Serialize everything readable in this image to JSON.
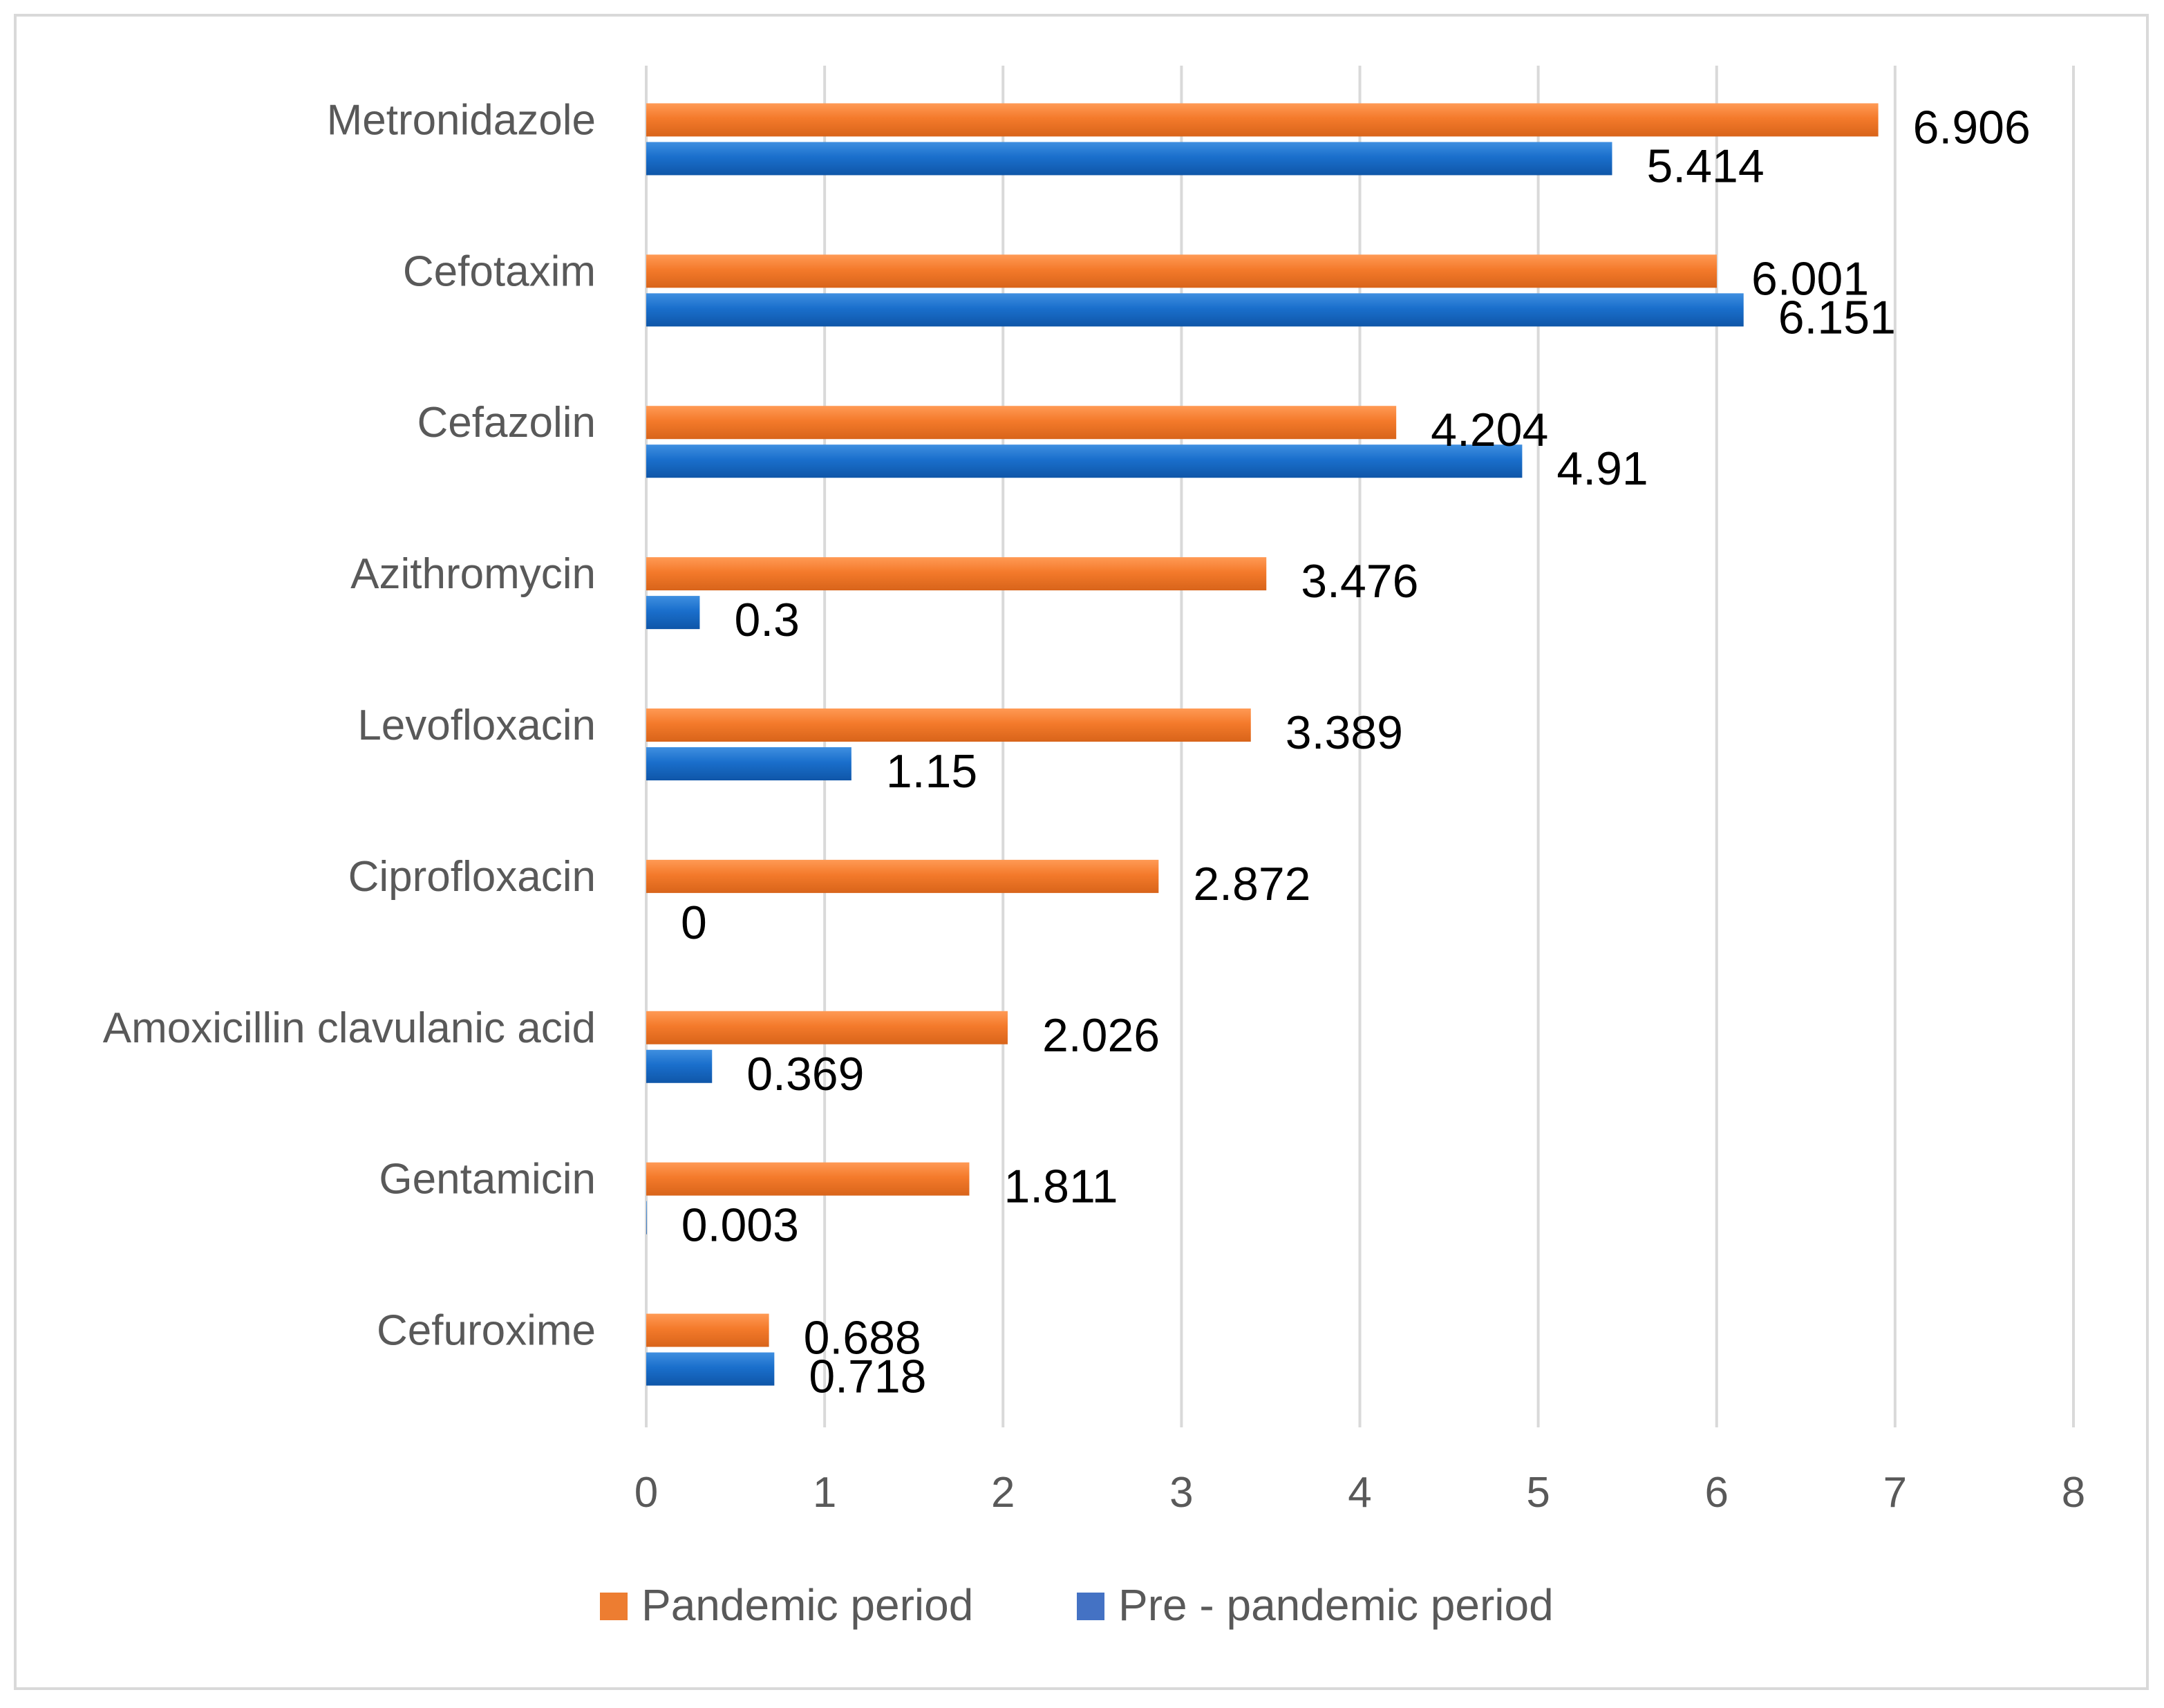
{
  "chart_data": {
    "type": "bar",
    "orientation": "horizontal",
    "title": "",
    "xlabel": "",
    "ylabel": "",
    "xlim": [
      0,
      8
    ],
    "x_ticks": [
      "0",
      "1",
      "2",
      "3",
      "4",
      "5",
      "6",
      "7",
      "8"
    ],
    "grid": true,
    "legend_position": "bottom",
    "categories": [
      "Metronidazole",
      "Cefotaxim",
      "Cefazolin",
      "Azithromycin",
      "Levofloxacin",
      "Ciprofloxacin",
      "Amoxicillin clavulanic acid",
      "Gentamicin",
      "Cefuroxime"
    ],
    "series": [
      {
        "name": "Pandemic period",
        "color": "#ed7d31",
        "values": [
          6.906,
          6.001,
          4.204,
          3.476,
          3.389,
          2.872,
          2.026,
          1.811,
          0.688
        ],
        "labels": [
          "6.906",
          "6.001",
          "4.204",
          "3.476",
          "3.389",
          "2.872",
          "2.026",
          "1.811",
          "0.688"
        ]
      },
      {
        "name": "Pre - pandemic period",
        "color": "#4472c4",
        "values": [
          5.414,
          6.151,
          4.91,
          0.3,
          1.15,
          0,
          0.369,
          0.003,
          0.718
        ],
        "labels": [
          "5.414",
          "6.151",
          "4.91",
          "0.3",
          "1.15",
          "0",
          "0.369",
          "0.003",
          "0.718"
        ]
      }
    ]
  }
}
